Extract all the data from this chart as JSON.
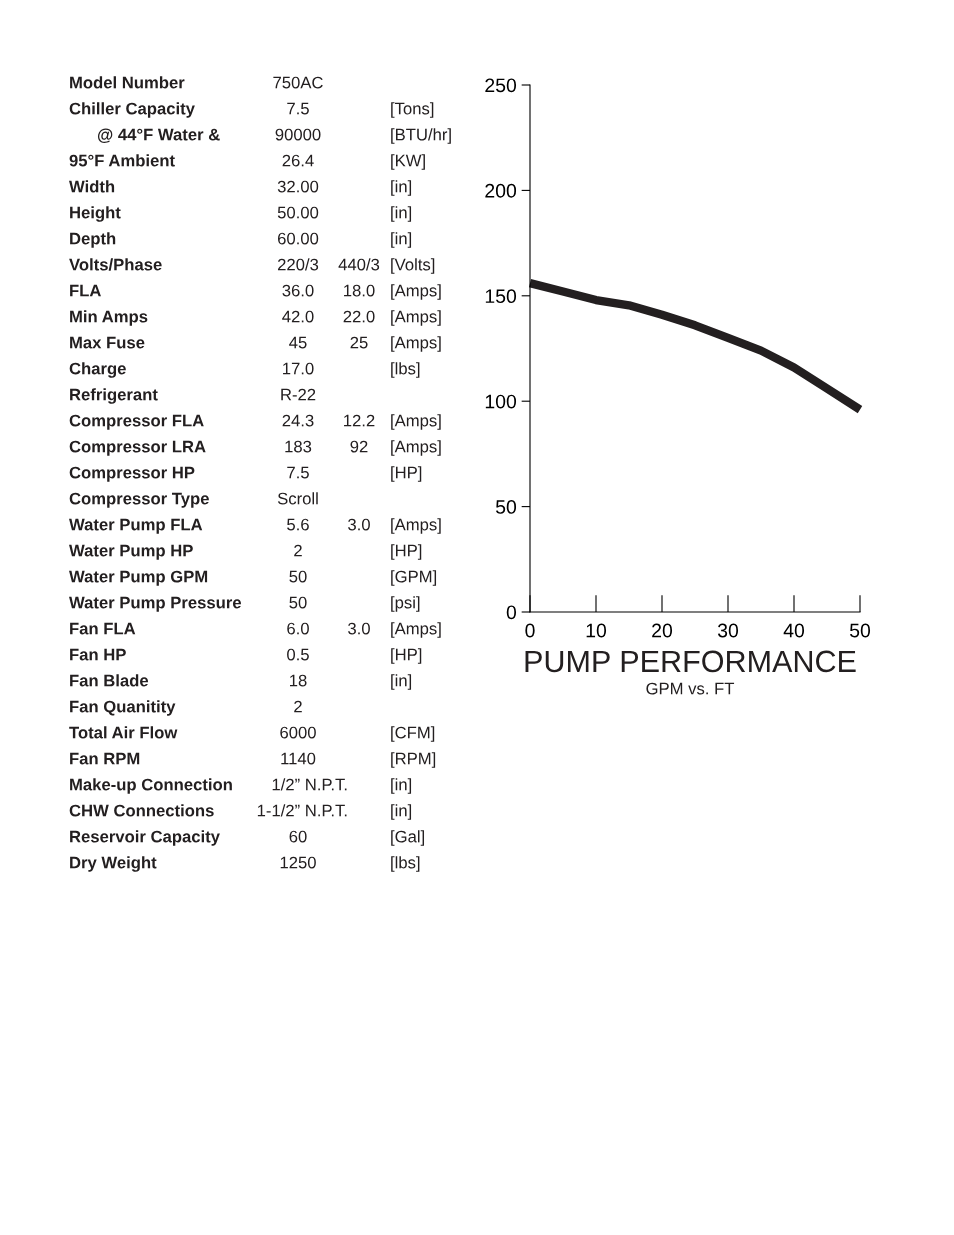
{
  "chart_data": [
    {
      "type": "other",
      "cell_labels": [
        [
          "Model Number",
          "750AC",
          null,
          null
        ],
        [
          "Chiller Capacity",
          "7.5",
          null,
          "[Tons]"
        ],
        [
          "@ 44°F Water &",
          "90000",
          null,
          "[BTU/hr]"
        ],
        [
          "95°F Ambient",
          "26.4",
          null,
          "[KW]"
        ],
        [
          "Width",
          "32.00",
          null,
          "[in]"
        ],
        [
          "Height",
          "50.00",
          null,
          "[in]"
        ],
        [
          "Depth",
          "60.00",
          null,
          "[in]"
        ],
        [
          "Volts/Phase",
          "220/3",
          "440/3",
          "[Volts]"
        ],
        [
          "FLA",
          "36.0",
          "18.0",
          "[Amps]"
        ],
        [
          "Min Amps",
          "42.0",
          "22.0",
          "[Amps]"
        ],
        [
          "Max Fuse",
          "45",
          "25",
          "[Amps]"
        ],
        [
          "Charge",
          "17.0",
          null,
          "[lbs]"
        ],
        [
          "Refrigerant",
          "R-22",
          null,
          null
        ],
        [
          "Compressor FLA",
          "24.3",
          "12.2",
          "[Amps]"
        ],
        [
          "Compressor LRA",
          "183",
          "92",
          "[Amps]"
        ],
        [
          "Compressor HP",
          "7.5",
          null,
          "[HP]"
        ],
        [
          "Compressor Type",
          "Scroll",
          null,
          null
        ],
        [
          "Water Pump FLA",
          "5.6",
          "3.0",
          "[Amps]"
        ],
        [
          "Water Pump HP",
          "2",
          null,
          "[HP]"
        ],
        [
          "Water Pump GPM",
          "50",
          null,
          "[GPM]"
        ],
        [
          "Water Pump Pressure",
          "50",
          null,
          "[psi]"
        ],
        [
          "Fan FLA",
          "6.0",
          "3.0",
          "[Amps]"
        ],
        [
          "Fan HP",
          "0.5",
          null,
          "[HP]"
        ],
        [
          "Fan Blade",
          "18",
          null,
          "[in]"
        ],
        [
          "Fan Quanitity",
          "2",
          null,
          null
        ],
        [
          "Total Air Flow",
          "6000",
          null,
          "[CFM]"
        ],
        [
          "Fan RPM",
          "1140",
          null,
          "[RPM]"
        ],
        [
          "Make-up Connection",
          "1/2” N.P.T.",
          null,
          "[in]"
        ],
        [
          "CHW Connections",
          "1-1/2” N.P.T.",
          null,
          "[in]"
        ],
        [
          "Reservoir Capacity",
          "60",
          null,
          "[Gal]"
        ],
        [
          "Dry Weight",
          "1250",
          null,
          "[lbs]"
        ]
      ]
    },
    {
      "type": "line",
      "title": "PUMP PERFORMANCE",
      "subtitle": "GPM vs. FT",
      "x": [
        0,
        5,
        10,
        15,
        20,
        25,
        30,
        35,
        40,
        45,
        50
      ],
      "series": [
        {
          "color": "#231f20",
          "values": [
            156,
            152,
            148,
            145.5,
            141,
            136,
            130,
            124,
            116,
            106,
            96
          ]
        }
      ],
      "xlim": [
        0,
        50
      ],
      "xticks": [
        0,
        10,
        20,
        30,
        40,
        50
      ],
      "ylim": [
        0,
        250
      ],
      "yticks": [
        0,
        50,
        100,
        150,
        200,
        250
      ],
      "grid": false,
      "marker": "none",
      "line_style": "solid"
    }
  ]
}
